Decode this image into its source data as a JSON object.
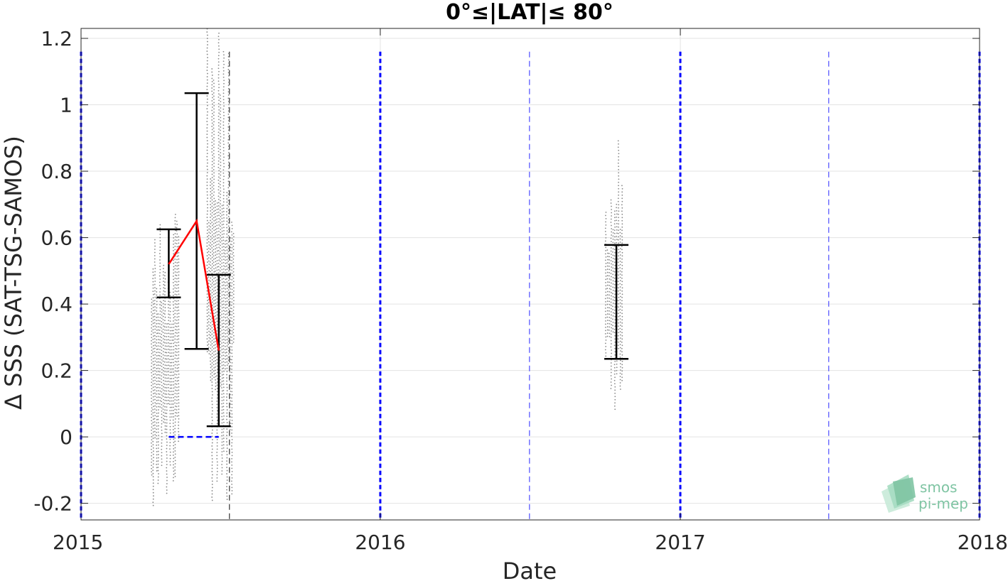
{
  "chart_data": {
    "type": "scatter",
    "title": "0°≤|LAT|≤ 80°",
    "xlabel": "Date",
    "ylabel": "Δ SSS (SAT-TSG-SAMOS)",
    "xlim": [
      "2015-01-01",
      "2018-01-01"
    ],
    "ylim": [
      -0.25,
      1.23
    ],
    "x_ticks": [
      "2015",
      "2016",
      "2017",
      "2018"
    ],
    "y_ticks": [
      -0.2,
      0,
      0.2,
      0.4,
      0.6,
      0.8,
      1,
      1.2
    ],
    "y_tick_labels": [
      "-0.2",
      "0",
      "0.2",
      "0.4",
      "0.6",
      "0.8",
      "1",
      "1.2"
    ],
    "grid": true,
    "series": [
      {
        "kind": "errorbar",
        "color": "#000000",
        "points": [
          {
            "x": "2015-04-18",
            "mean": 0.52,
            "low": 0.42,
            "high": 0.625
          },
          {
            "x": "2015-05-22",
            "mean": 0.65,
            "low": 0.265,
            "high": 1.035
          },
          {
            "x": "2015-06-18",
            "mean": 0.26,
            "low": 0.032,
            "high": 0.488
          },
          {
            "x": "2016-10-15",
            "mean": 0.41,
            "low": 0.235,
            "high": 0.578
          }
        ]
      },
      {
        "kind": "mean-line",
        "color": "#ff0000",
        "points": [
          {
            "x": "2015-04-18",
            "y": 0.52
          },
          {
            "x": "2015-05-22",
            "y": 0.65
          },
          {
            "x": "2015-06-18",
            "y": 0.26
          }
        ]
      },
      {
        "kind": "raw-scatter",
        "color": "#888888",
        "clusters": [
          {
            "x_start": "2015-03-28",
            "x_end": "2015-04-30",
            "y_min": -0.22,
            "y_max": 0.68
          },
          {
            "x_start": "2015-06-04",
            "x_end": "2015-07-06",
            "y_min": -0.22,
            "y_max": 1.23
          },
          {
            "x_start": "2016-10-02",
            "x_end": "2016-10-22",
            "y_min": 0.02,
            "y_max": 0.91
          }
        ]
      },
      {
        "kind": "reference-line",
        "color": "#0000ff",
        "x_start": "2015-04-18",
        "x_end": "2015-06-18",
        "y": 0
      }
    ],
    "vertical_markers": [
      {
        "x": "2015-01-01",
        "color": "#0000ff",
        "style": "thick-dashed"
      },
      {
        "x": "2016-01-01",
        "color": "#0000ff",
        "style": "thick-dashed"
      },
      {
        "x": "2017-01-01",
        "color": "#0000ff",
        "style": "thick-dashed"
      },
      {
        "x": "2018-01-01",
        "color": "#0000ff",
        "style": "thick-dashed"
      },
      {
        "x": "2016-07-01",
        "color": "#4b4bff",
        "style": "thin-dashed"
      },
      {
        "x": "2017-07-01",
        "color": "#4b4bff",
        "style": "thin-dashed"
      },
      {
        "x": "2015-07-01",
        "color": "#333333",
        "style": "thin-dashed"
      }
    ]
  },
  "logo": {
    "line1": "smos",
    "line2": "pi-mep"
  }
}
